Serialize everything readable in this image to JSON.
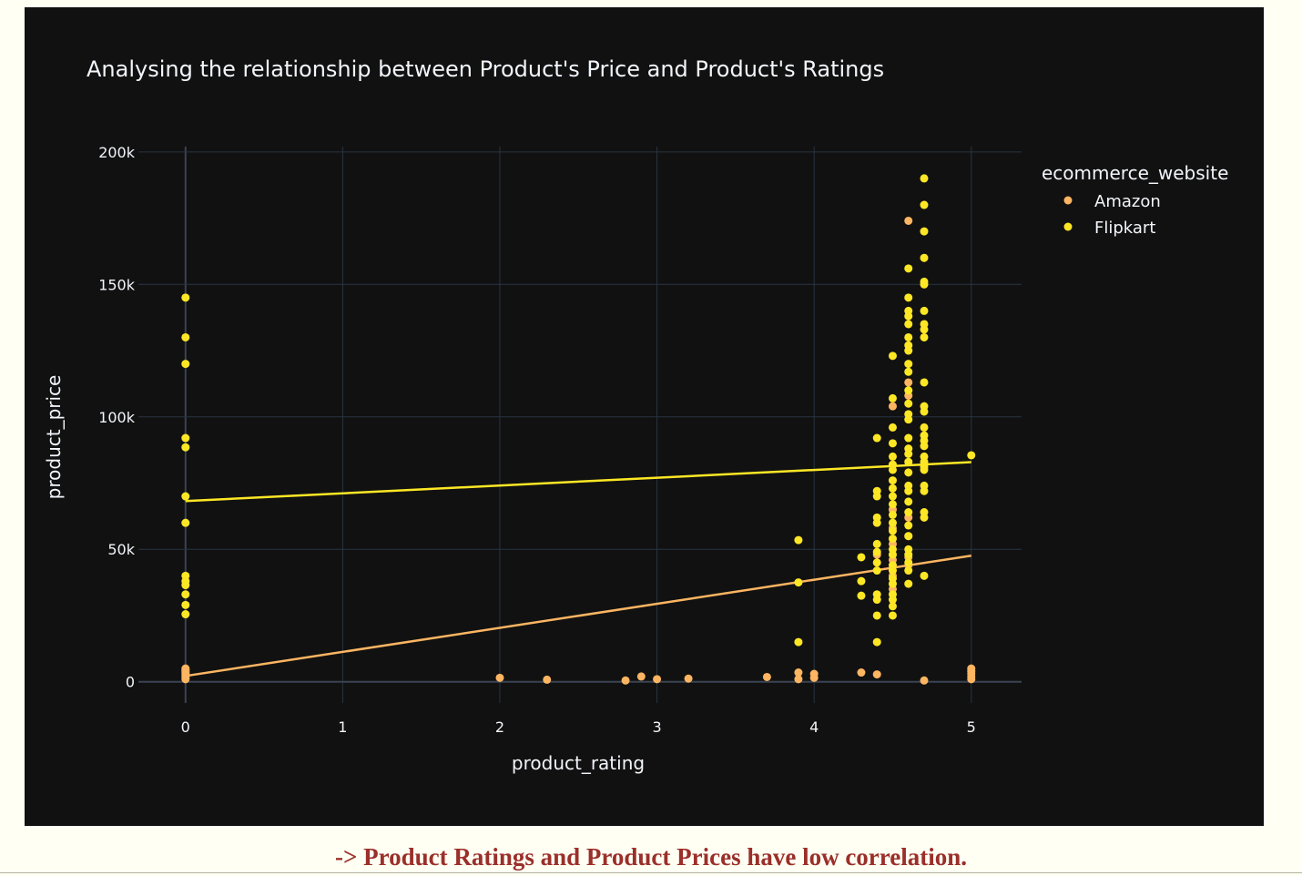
{
  "caption": "-> Product Ratings and Product Prices have low correlation.",
  "colors": {
    "background": "#111111",
    "grid": "#283442",
    "zeroline": "#3a4452",
    "text": "#f2f5fa",
    "caption": "#9b2f2a"
  },
  "chart_data": {
    "type": "scatter",
    "title": "Analysing the relationship between Product's Price and Product's Ratings",
    "xlabel": "product_rating",
    "ylabel": "product_price",
    "xlim": [
      -0.3,
      5.32
    ],
    "ylim": [
      -8000,
      202000
    ],
    "xticks": [
      0,
      1,
      2,
      3,
      4,
      5
    ],
    "xtick_labels": [
      "0",
      "1",
      "2",
      "3",
      "4",
      "5"
    ],
    "yticks": [
      0,
      50000,
      100000,
      150000,
      200000
    ],
    "ytick_labels": [
      "0",
      "50k",
      "100k",
      "150k",
      "200k"
    ],
    "grid": true,
    "legend": {
      "title": "ecommerce_website",
      "placement": "top-right, outside plot"
    },
    "series": [
      {
        "name": "Amazon",
        "color": "#fdb562",
        "trendline": [
          [
            0,
            2200
          ],
          [
            5,
            47600
          ]
        ],
        "points": [
          [
            0,
            1000
          ],
          [
            0,
            1500
          ],
          [
            0,
            2000
          ],
          [
            0,
            2500
          ],
          [
            0,
            3000
          ],
          [
            0,
            3500
          ],
          [
            0,
            4000
          ],
          [
            0,
            4500
          ],
          [
            0,
            5000
          ],
          [
            2,
            1500
          ],
          [
            2.3,
            800
          ],
          [
            2.8,
            500
          ],
          [
            2.9,
            2000
          ],
          [
            3,
            1000
          ],
          [
            3.2,
            1200
          ],
          [
            3.7,
            1800
          ],
          [
            3.9,
            1000
          ],
          [
            3.9,
            3500
          ],
          [
            4,
            1500
          ],
          [
            4,
            3000
          ],
          [
            4.3,
            3500
          ],
          [
            4.4,
            2800
          ],
          [
            4.7,
            500
          ],
          [
            5,
            1000
          ],
          [
            5,
            2000
          ],
          [
            5,
            3000
          ],
          [
            5,
            4000
          ],
          [
            5,
            5000
          ],
          [
            4.6,
            174000
          ],
          [
            4.6,
            113000
          ],
          [
            4.5,
            104000
          ],
          [
            4.6,
            108000
          ],
          [
            4.5,
            65000
          ],
          [
            4.5,
            58000
          ],
          [
            4.5,
            52000
          ],
          [
            4.5,
            46000
          ],
          [
            4.5,
            40000
          ],
          [
            4.5,
            35000
          ],
          [
            4.6,
            62000
          ],
          [
            4.6,
            55000
          ],
          [
            4.6,
            47000
          ],
          [
            4.6,
            44000
          ],
          [
            4.4,
            48000
          ]
        ]
      },
      {
        "name": "Flipkart",
        "color": "#fde725",
        "trendline": [
          [
            0,
            68200
          ],
          [
            5,
            82900
          ]
        ],
        "points": [
          [
            0,
            145000
          ],
          [
            0,
            130000
          ],
          [
            0,
            120000
          ],
          [
            0,
            92000
          ],
          [
            0,
            88500
          ],
          [
            0,
            70000
          ],
          [
            0,
            60000
          ],
          [
            0,
            40000
          ],
          [
            0,
            38000
          ],
          [
            0,
            36500
          ],
          [
            0,
            33000
          ],
          [
            0,
            29000
          ],
          [
            0,
            25500
          ],
          [
            3.9,
            53500
          ],
          [
            3.9,
            37500
          ],
          [
            3.9,
            15000
          ],
          [
            4.3,
            47000
          ],
          [
            4.3,
            38000
          ],
          [
            4.3,
            32500
          ],
          [
            4.4,
            92000
          ],
          [
            4.4,
            72000
          ],
          [
            4.4,
            70000
          ],
          [
            4.4,
            62000
          ],
          [
            4.4,
            60000
          ],
          [
            4.4,
            52000
          ],
          [
            4.4,
            49000
          ],
          [
            4.4,
            45000
          ],
          [
            4.4,
            42000
          ],
          [
            4.4,
            33000
          ],
          [
            4.4,
            31000
          ],
          [
            4.4,
            25000
          ],
          [
            4.4,
            15000
          ],
          [
            4.5,
            123000
          ],
          [
            4.5,
            107000
          ],
          [
            4.5,
            96000
          ],
          [
            4.5,
            90000
          ],
          [
            4.5,
            85000
          ],
          [
            4.5,
            82000
          ],
          [
            4.5,
            80000
          ],
          [
            4.5,
            76000
          ],
          [
            4.5,
            73000
          ],
          [
            4.5,
            70000
          ],
          [
            4.5,
            67000
          ],
          [
            4.5,
            63000
          ],
          [
            4.5,
            60000
          ],
          [
            4.5,
            57000
          ],
          [
            4.5,
            54000
          ],
          [
            4.5,
            50000
          ],
          [
            4.5,
            48000
          ],
          [
            4.5,
            44000
          ],
          [
            4.5,
            42000
          ],
          [
            4.5,
            39000
          ],
          [
            4.5,
            37000
          ],
          [
            4.5,
            33000
          ],
          [
            4.5,
            31000
          ],
          [
            4.5,
            28500
          ],
          [
            4.5,
            25000
          ],
          [
            4.6,
            156000
          ],
          [
            4.6,
            145000
          ],
          [
            4.6,
            140000
          ],
          [
            4.6,
            138000
          ],
          [
            4.6,
            135000
          ],
          [
            4.6,
            130000
          ],
          [
            4.6,
            127000
          ],
          [
            4.6,
            125000
          ],
          [
            4.6,
            120000
          ],
          [
            4.6,
            117000
          ],
          [
            4.6,
            110000
          ],
          [
            4.6,
            105000
          ],
          [
            4.6,
            101000
          ],
          [
            4.6,
            99000
          ],
          [
            4.6,
            92000
          ],
          [
            4.6,
            88000
          ],
          [
            4.6,
            86000
          ],
          [
            4.6,
            83000
          ],
          [
            4.6,
            79000
          ],
          [
            4.6,
            74000
          ],
          [
            4.6,
            72000
          ],
          [
            4.6,
            68000
          ],
          [
            4.6,
            64000
          ],
          [
            4.6,
            59000
          ],
          [
            4.6,
            55000
          ],
          [
            4.6,
            50000
          ],
          [
            4.6,
            48000
          ],
          [
            4.6,
            45000
          ],
          [
            4.6,
            42000
          ],
          [
            4.6,
            37000
          ],
          [
            4.7,
            190000
          ],
          [
            4.7,
            180000
          ],
          [
            4.7,
            170000
          ],
          [
            4.7,
            160000
          ],
          [
            4.7,
            151000
          ],
          [
            4.7,
            150000
          ],
          [
            4.7,
            140000
          ],
          [
            4.7,
            135000
          ],
          [
            4.7,
            133000
          ],
          [
            4.7,
            130000
          ],
          [
            4.7,
            113000
          ],
          [
            4.7,
            104000
          ],
          [
            4.7,
            102000
          ],
          [
            4.7,
            96000
          ],
          [
            4.7,
            93000
          ],
          [
            4.7,
            91000
          ],
          [
            4.7,
            89000
          ],
          [
            4.7,
            85000
          ],
          [
            4.7,
            83000
          ],
          [
            4.7,
            81000
          ],
          [
            4.7,
            80000
          ],
          [
            4.7,
            74000
          ],
          [
            4.7,
            72000
          ],
          [
            4.7,
            64000
          ],
          [
            4.7,
            62000
          ],
          [
            4.7,
            40000
          ],
          [
            5,
            85500
          ]
        ]
      }
    ]
  }
}
